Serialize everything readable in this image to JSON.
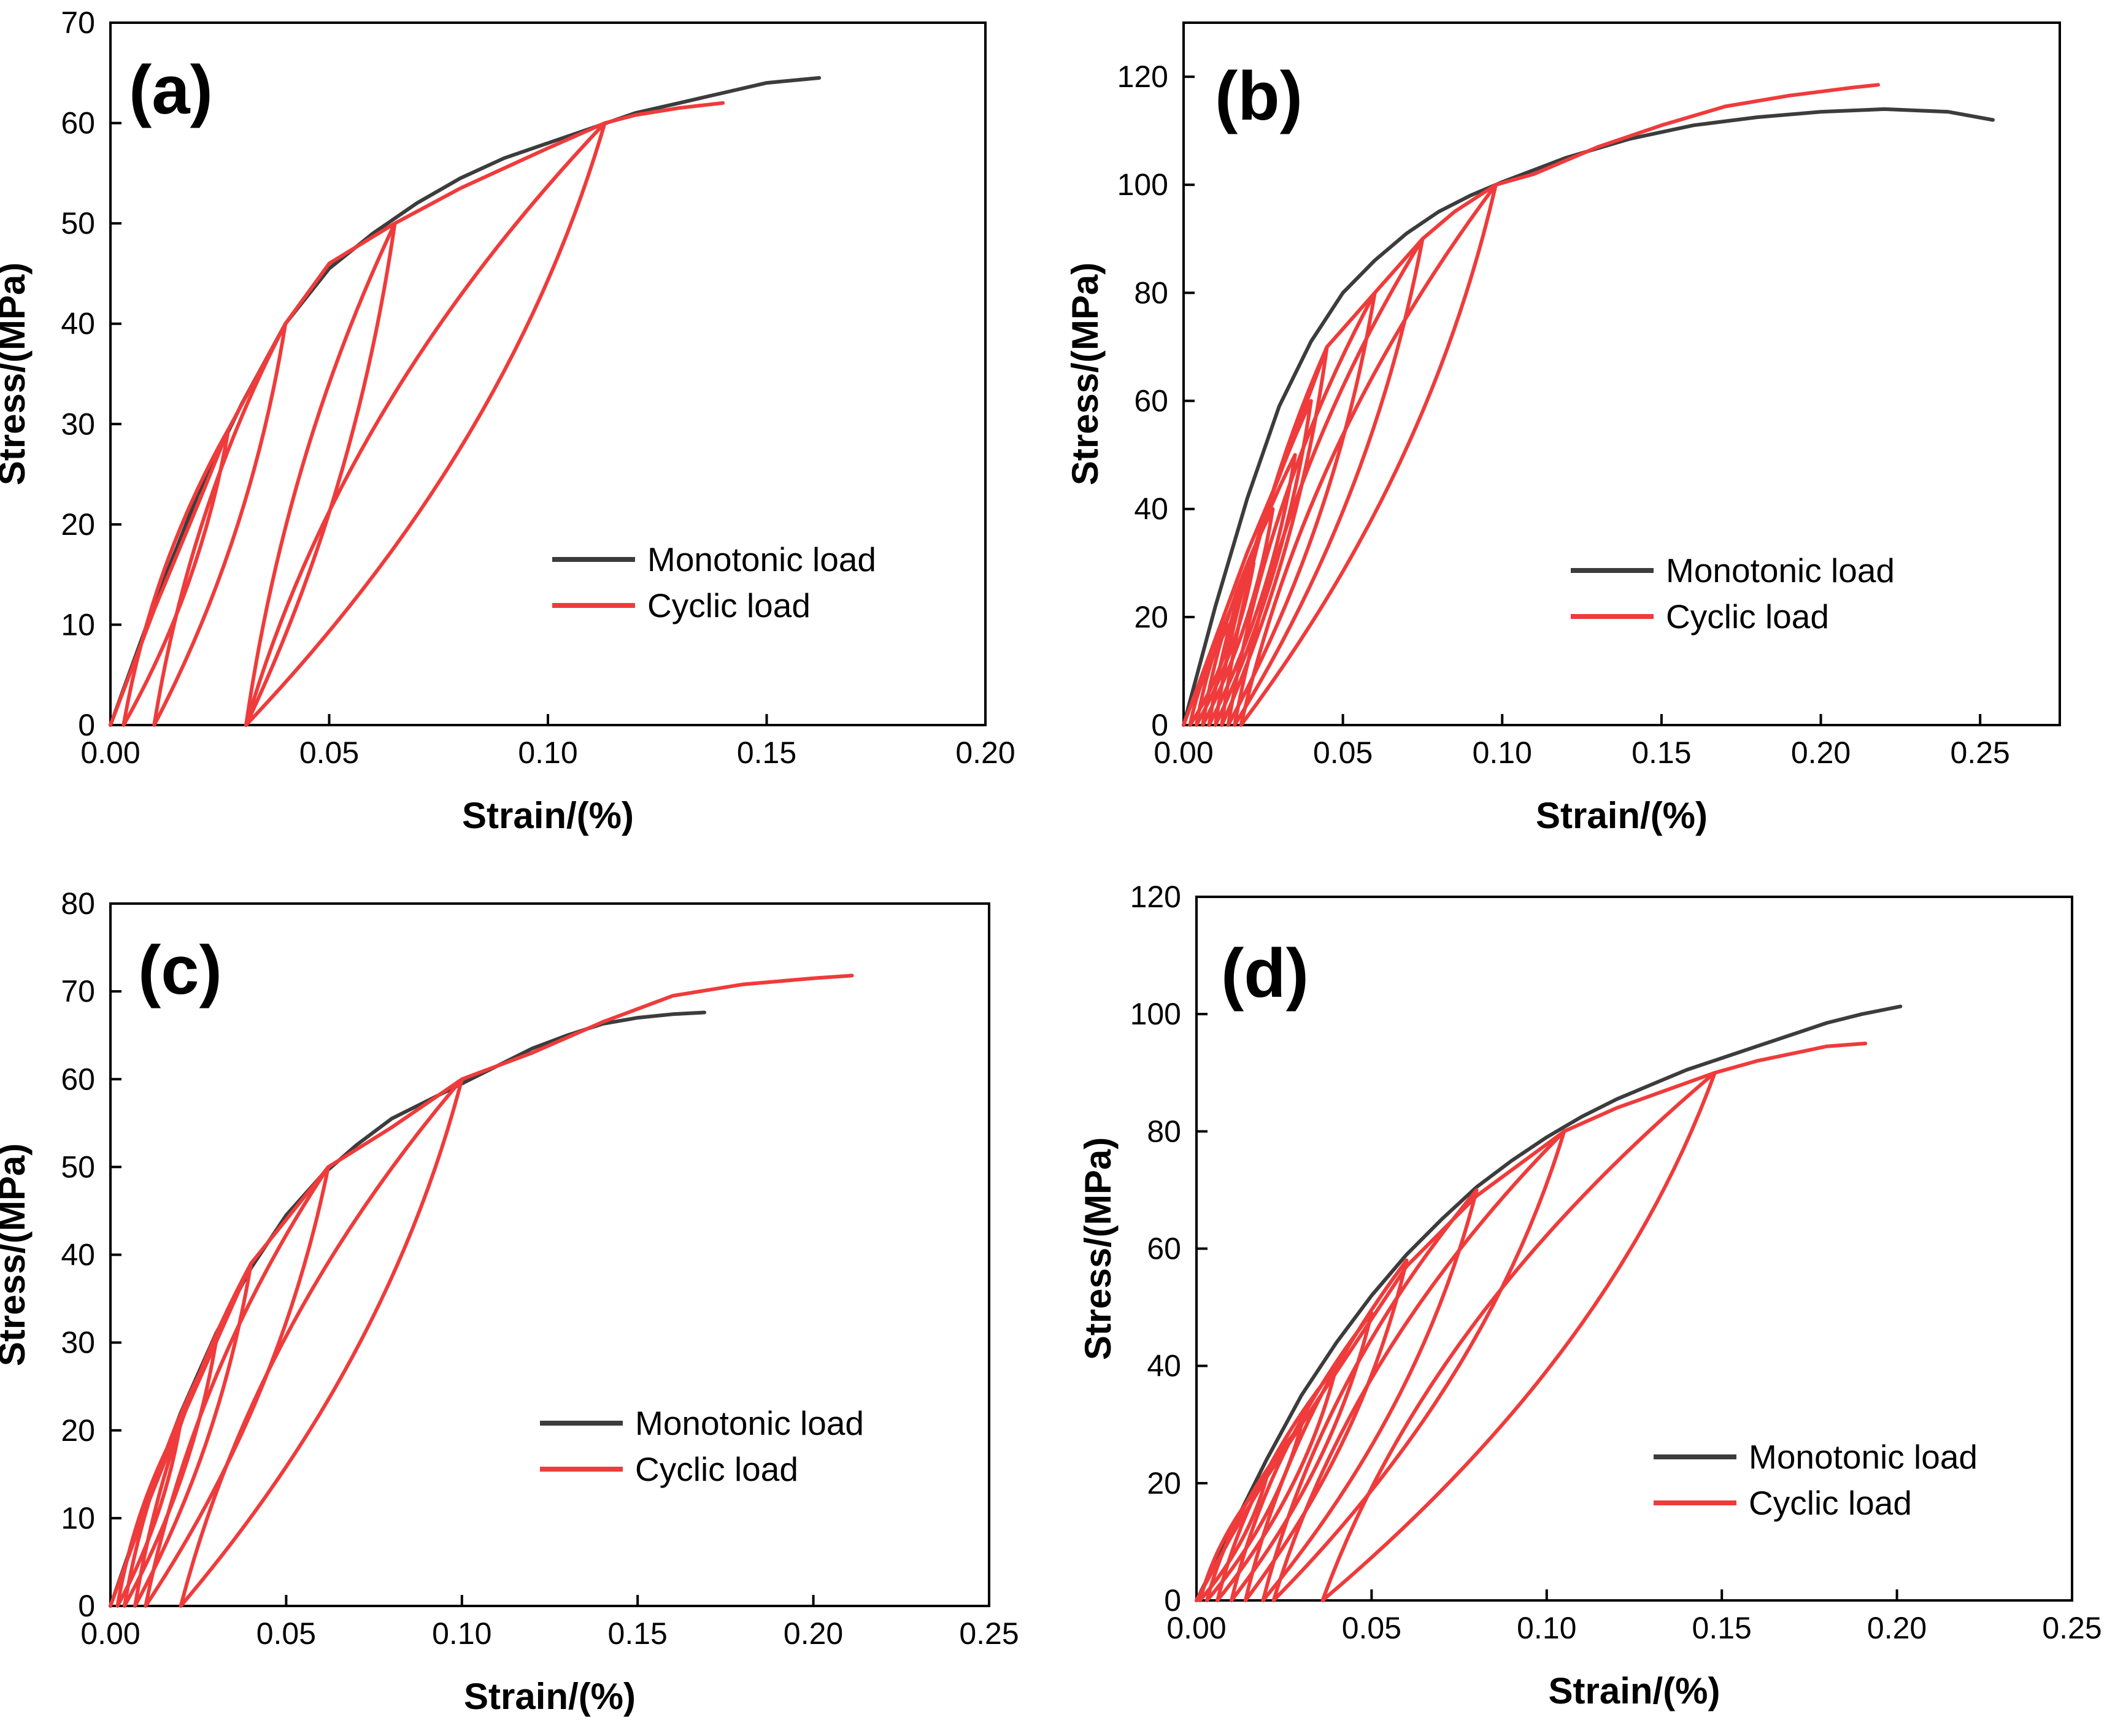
{
  "colors": {
    "monotonic": "#3c3c3c",
    "cyclic": "#ef3b3b",
    "axis": "#000000"
  },
  "chart_data": [
    {
      "type": "line",
      "panel_label": "(a)",
      "xlabel": "Strain/(%)",
      "ylabel": "Stress/(MPa)",
      "xlim": [
        0,
        0.2
      ],
      "ylim": [
        0,
        70
      ],
      "xticks": [
        "0.00",
        "0.05",
        "0.10",
        "0.15",
        "0.20"
      ],
      "yticks": [
        "0",
        "10",
        "20",
        "30",
        "40",
        "50",
        "60",
        "70"
      ],
      "legend": [
        "Monotonic load",
        "Cyclic load"
      ],
      "legend_position": "lower-right",
      "series": [
        {
          "name": "Monotonic load",
          "x": [
            0,
            0.01,
            0.02,
            0.03,
            0.04,
            0.05,
            0.06,
            0.07,
            0.08,
            0.09,
            0.1,
            0.11,
            0.12,
            0.13,
            0.14,
            0.15,
            0.162
          ],
          "y": [
            0,
            12,
            23,
            32,
            40,
            45.5,
            49,
            52,
            54.5,
            56.5,
            58,
            59.5,
            61,
            62,
            63,
            64,
            64.5
          ]
        },
        {
          "name": "Cyclic load",
          "x": [
            0,
            0.01,
            0.02,
            0.027,
            0.04,
            0.05,
            0.065,
            0.08,
            0.1,
            0.113,
            0.12,
            0.13,
            0.14
          ],
          "y": [
            0,
            11.5,
            22,
            29.5,
            40,
            46,
            50,
            53.5,
            57.5,
            60,
            60.8,
            61.5,
            62
          ],
          "loops": [
            {
              "peak": [
                0.027,
                29.5
              ],
              "residual": [
                0.003,
                0
              ]
            },
            {
              "peak": [
                0.04,
                40
              ],
              "residual": [
                0.01,
                0
              ]
            },
            {
              "peak": [
                0.065,
                50
              ],
              "residual": [
                0.031,
                0
              ]
            },
            {
              "peak": [
                0.113,
                60
              ],
              "residual": [
                0.031,
                0
              ]
            }
          ]
        }
      ]
    },
    {
      "type": "line",
      "panel_label": "(b)",
      "xlabel": "Strain/(%)",
      "ylabel": "Stress/(MPa)",
      "xlim": [
        0,
        0.275
      ],
      "ylim": [
        0,
        130
      ],
      "xticks": [
        "0.00",
        "0.05",
        "0.10",
        "0.15",
        "0.20",
        "0.25"
      ],
      "yticks": [
        "0",
        "20",
        "40",
        "60",
        "80",
        "100",
        "120"
      ],
      "legend": [
        "Monotonic load",
        "Cyclic load"
      ],
      "legend_position": "lower-right",
      "series": [
        {
          "name": "Monotonic load",
          "x": [
            0,
            0.01,
            0.02,
            0.03,
            0.04,
            0.05,
            0.06,
            0.07,
            0.08,
            0.09,
            0.1,
            0.12,
            0.14,
            0.16,
            0.18,
            0.2,
            0.22,
            0.24,
            0.254
          ],
          "y": [
            0,
            22,
            42,
            59,
            71,
            80,
            86,
            91,
            95,
            98,
            100.5,
            105,
            108.5,
            111,
            112.5,
            113.5,
            114,
            113.5,
            112
          ]
        },
        {
          "name": "Cyclic load",
          "x": [
            0,
            0.01,
            0.02,
            0.03,
            0.045,
            0.06,
            0.075,
            0.085,
            0.098,
            0.11,
            0.13,
            0.15,
            0.17,
            0.19,
            0.21,
            0.218
          ],
          "y": [
            0,
            16,
            32,
            46,
            70,
            80,
            90,
            95,
            100,
            102,
            107,
            111,
            114.5,
            116.5,
            118,
            118.5
          ],
          "loops": [
            {
              "peak": [
                0.016,
                20
              ],
              "residual": [
                0.002,
                0
              ]
            },
            {
              "peak": [
                0.022,
                30
              ],
              "residual": [
                0.004,
                0
              ]
            },
            {
              "peak": [
                0.028,
                40
              ],
              "residual": [
                0.006,
                0
              ]
            },
            {
              "peak": [
                0.035,
                50
              ],
              "residual": [
                0.008,
                0
              ]
            },
            {
              "peak": [
                0.04,
                60
              ],
              "residual": [
                0.01,
                0
              ]
            },
            {
              "peak": [
                0.045,
                70
              ],
              "residual": [
                0.012,
                0
              ]
            },
            {
              "peak": [
                0.06,
                80
              ],
              "residual": [
                0.014,
                0
              ]
            },
            {
              "peak": [
                0.075,
                90
              ],
              "residual": [
                0.016,
                0
              ]
            },
            {
              "peak": [
                0.098,
                100
              ],
              "residual": [
                0.018,
                0
              ]
            }
          ]
        }
      ]
    },
    {
      "type": "line",
      "panel_label": "(c)",
      "xlabel": "Strain/(%)",
      "ylabel": "Stress/(MPa)",
      "xlim": [
        0,
        0.25
      ],
      "ylim": [
        0,
        80
      ],
      "xticks": [
        "0.00",
        "0.05",
        "0.10",
        "0.15",
        "0.20",
        "0.25"
      ],
      "yticks": [
        "0",
        "10",
        "20",
        "30",
        "40",
        "50",
        "60",
        "70",
        "80"
      ],
      "legend": [
        "Monotonic load",
        "Cyclic load"
      ],
      "legend_position": "lower-right",
      "series": [
        {
          "name": "Monotonic load",
          "x": [
            0,
            0.01,
            0.02,
            0.03,
            0.04,
            0.05,
            0.06,
            0.07,
            0.08,
            0.09,
            0.1,
            0.11,
            0.12,
            0.13,
            0.14,
            0.15,
            0.16,
            0.169
          ],
          "y": [
            0,
            11.5,
            22,
            31,
            38.5,
            44.5,
            49,
            52.5,
            55.5,
            57.5,
            59.5,
            61.5,
            63.5,
            65,
            66.3,
            67,
            67.4,
            67.6
          ]
        },
        {
          "name": "Cyclic load",
          "x": [
            0,
            0.01,
            0.02,
            0.03,
            0.04,
            0.062,
            0.08,
            0.1,
            0.12,
            0.14,
            0.16,
            0.18,
            0.2,
            0.211
          ],
          "y": [
            0,
            11,
            21,
            30,
            39,
            50,
            54.5,
            60,
            63,
            66.5,
            69.5,
            70.8,
            71.5,
            71.8
          ],
          "loops": [
            {
              "peak": [
                0.02,
                21
              ],
              "residual": [
                0.002,
                0
              ]
            },
            {
              "peak": [
                0.03,
                30
              ],
              "residual": [
                0.004,
                0
              ]
            },
            {
              "peak": [
                0.04,
                39
              ],
              "residual": [
                0.007,
                0
              ]
            },
            {
              "peak": [
                0.062,
                50
              ],
              "residual": [
                0.01,
                0
              ]
            },
            {
              "peak": [
                0.1,
                60
              ],
              "residual": [
                0.02,
                0
              ]
            }
          ]
        }
      ]
    },
    {
      "type": "line",
      "panel_label": "(d)",
      "xlabel": "Strain/(%)",
      "ylabel": "Stress/(MPa)",
      "xlim": [
        0,
        0.25
      ],
      "ylim": [
        0,
        120
      ],
      "xticks": [
        "0.00",
        "0.05",
        "0.10",
        "0.15",
        "0.20",
        "0.25"
      ],
      "yticks": [
        "0",
        "20",
        "40",
        "60",
        "80",
        "100",
        "120"
      ],
      "legend": [
        "Monotonic load",
        "Cyclic load"
      ],
      "legend_position": "lower-right",
      "series": [
        {
          "name": "Monotonic load",
          "x": [
            0,
            0.01,
            0.02,
            0.03,
            0.04,
            0.05,
            0.06,
            0.07,
            0.08,
            0.09,
            0.1,
            0.11,
            0.12,
            0.13,
            0.14,
            0.15,
            0.16,
            0.17,
            0.18,
            0.19,
            0.201
          ],
          "y": [
            0,
            12,
            24,
            35,
            44,
            52,
            59,
            65,
            70.5,
            75,
            79,
            82.5,
            85.5,
            88,
            90.5,
            92.5,
            94.5,
            96.5,
            98.5,
            100,
            101.3
          ]
        },
        {
          "name": "Cyclic load",
          "x": [
            0,
            0.01,
            0.02,
            0.03,
            0.04,
            0.05,
            0.06,
            0.08,
            0.105,
            0.12,
            0.148,
            0.16,
            0.18,
            0.191
          ],
          "y": [
            0,
            11,
            21,
            30,
            39,
            48,
            57,
            69,
            80,
            84,
            90,
            92,
            94.5,
            95
          ],
          "loops": [
            {
              "peak": [
                0.02,
                21
              ],
              "residual": [
                0.001,
                0
              ]
            },
            {
              "peak": [
                0.03,
                30
              ],
              "residual": [
                0.003,
                0
              ]
            },
            {
              "peak": [
                0.04,
                40
              ],
              "residual": [
                0.006,
                0
              ]
            },
            {
              "peak": [
                0.05,
                49
              ],
              "residual": [
                0.01,
                0
              ]
            },
            {
              "peak": [
                0.06,
                58
              ],
              "residual": [
                0.014,
                0
              ]
            },
            {
              "peak": [
                0.08,
                70
              ],
              "residual": [
                0.019,
                0
              ]
            },
            {
              "peak": [
                0.105,
                80
              ],
              "residual": [
                0.022,
                0
              ]
            },
            {
              "peak": [
                0.148,
                90
              ],
              "residual": [
                0.036,
                0
              ]
            }
          ]
        }
      ]
    }
  ]
}
